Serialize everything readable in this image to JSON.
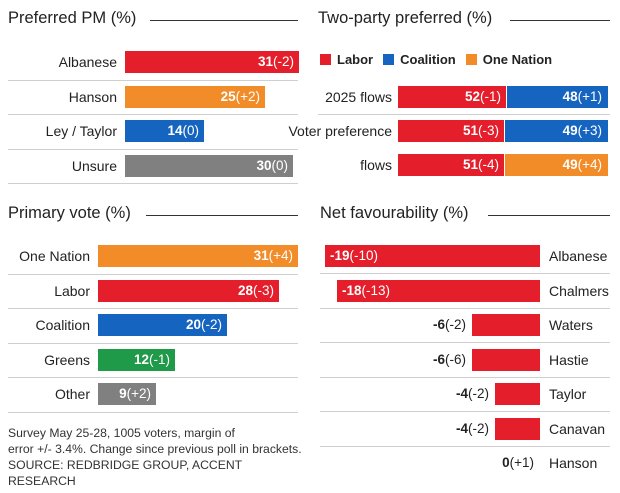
{
  "colors": {
    "labor": "#e41e2b",
    "coalition": "#1565c0",
    "one_nation": "#f28c28",
    "greens": "#1e9a48",
    "unsure": "#808080",
    "other": "#808080"
  },
  "notes": {
    "line1": "Survey May 25-28, 1005 voters, margin of",
    "line2": "error +/- 3.4%. Change since previous poll in brackets.",
    "source": "SOURCE: REDBRIDGE GROUP, ACCENT RESEARCH"
  },
  "chart_data": [
    {
      "type": "bar",
      "title": "Preferred PM (%)",
      "orientation": "horizontal",
      "categories": [
        "Albanese",
        "Hanson",
        "Ley / Taylor",
        "Unsure"
      ],
      "values": [
        31,
        25,
        14,
        30
      ],
      "changes": [
        "(-2)",
        "(+2)",
        "(0)",
        "(0)"
      ],
      "colors": [
        "#e41e2b",
        "#f28c28",
        "#1565c0",
        "#808080"
      ],
      "xlim": [
        0,
        31
      ]
    },
    {
      "type": "bar",
      "title": "Two-party preferred (%)",
      "orientation": "horizontal",
      "stacked": true,
      "legend": [
        "Labor",
        "Coalition",
        "One Nation"
      ],
      "legend_colors": [
        "#e41e2b",
        "#1565c0",
        "#f28c28"
      ],
      "legend_position": "top",
      "rows": [
        {
          "label": [
            "2025 flows"
          ],
          "left": {
            "value": 52,
            "change": "(-1)",
            "color": "#e41e2b"
          },
          "right": {
            "value": 48,
            "change": "(+1)",
            "color": "#1565c0"
          }
        },
        {
          "label": [
            "Voter",
            "preference"
          ],
          "left": {
            "value": 51,
            "change": "(-3)",
            "color": "#e41e2b"
          },
          "right": {
            "value": 49,
            "change": "(+3)",
            "color": "#1565c0"
          }
        },
        {
          "label": [
            "flows"
          ],
          "left": {
            "value": 51,
            "change": "(-4)",
            "color": "#e41e2b"
          },
          "right": {
            "value": 49,
            "change": "(+4)",
            "color": "#f28c28"
          }
        }
      ]
    },
    {
      "type": "bar",
      "title": "Primary vote (%)",
      "orientation": "horizontal",
      "categories": [
        "One Nation",
        "Labor",
        "Coalition",
        "Greens",
        "Other"
      ],
      "values": [
        31,
        28,
        20,
        12,
        9
      ],
      "changes": [
        "(+4)",
        "(-3)",
        "(-2)",
        "(-1)",
        "(+2)"
      ],
      "colors": [
        "#f28c28",
        "#e41e2b",
        "#1565c0",
        "#1e9a48",
        "#808080"
      ],
      "xlim": [
        0,
        31
      ]
    },
    {
      "type": "bar",
      "title": "Net favourability (%)",
      "orientation": "horizontal",
      "categories": [
        "Albanese",
        "Chalmers",
        "Waters",
        "Hastie",
        "Taylor",
        "Canavan",
        "Hanson"
      ],
      "values": [
        -19,
        -18,
        -6,
        -6,
        -4,
        -4,
        0
      ],
      "changes": [
        "(-10)",
        "(-13)",
        "(-2)",
        "(-6)",
        "(-2)",
        "(-2)",
        "(+1)"
      ],
      "bar_color": "#e41e2b",
      "xlim": [
        -20,
        0
      ]
    }
  ]
}
